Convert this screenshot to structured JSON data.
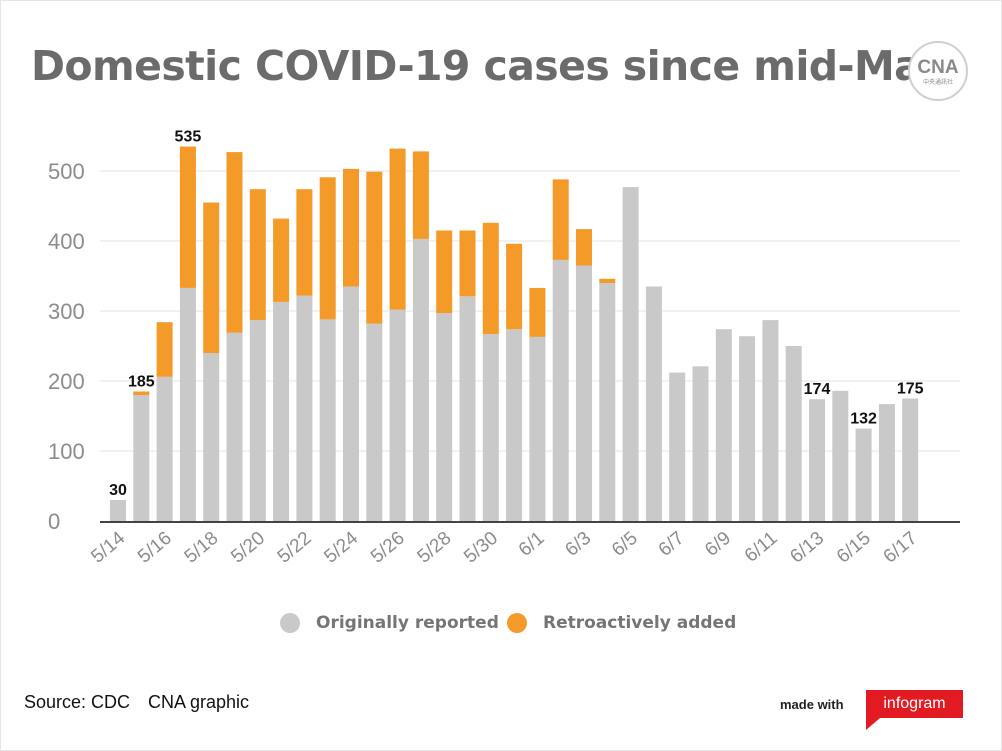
{
  "title": "Domestic COVID-19 cases since mid-May",
  "logo": {
    "mark": "CNA",
    "subtitle": "中央通訊社"
  },
  "legend": [
    {
      "label": "Originally reported",
      "color": "#c9c9c9"
    },
    {
      "label": "Retroactively added",
      "color": "#f39a28"
    }
  ],
  "footer": {
    "source": "Source: CDC",
    "graphic": "CNA graphic",
    "made_with": "made with",
    "brand": "infogram"
  },
  "colors": {
    "original": "#c9c9c9",
    "retro": "#f39a28",
    "axis": "#444444",
    "grid": "#e3e3e3",
    "tick_text": "#8c8c8c"
  },
  "chart_data": {
    "type": "bar",
    "stacked": true,
    "grid": true,
    "legend_position": "bottom",
    "ylim": [
      0,
      600
    ],
    "yticks": [
      0,
      100,
      200,
      300,
      400,
      500
    ],
    "categories": [
      "5/14",
      "5/15",
      "5/16",
      "5/17",
      "5/18",
      "5/19",
      "5/20",
      "5/21",
      "5/22",
      "5/23",
      "5/24",
      "5/25",
      "5/26",
      "5/27",
      "5/28",
      "5/29",
      "5/30",
      "5/31",
      "6/1",
      "6/2",
      "6/3",
      "6/4",
      "6/5",
      "6/6",
      "6/7",
      "6/8",
      "6/9",
      "6/10",
      "6/11",
      "6/12",
      "6/13",
      "6/14",
      "6/15",
      "6/16",
      "6/17"
    ],
    "xtick_labels": [
      "5/14",
      "5/16",
      "5/18",
      "5/20",
      "5/22",
      "5/24",
      "5/26",
      "5/28",
      "5/30",
      "6/1",
      "6/3",
      "6/5",
      "6/7",
      "6/9",
      "6/11",
      "6/13",
      "6/15",
      "6/17"
    ],
    "series": [
      {
        "name": "Originally reported",
        "values": [
          30,
          180,
          206,
          333,
          240,
          269,
          287,
          313,
          322,
          288,
          335,
          282,
          302,
          403,
          297,
          321,
          267,
          274,
          263,
          373,
          365,
          340,
          477,
          335,
          212,
          221,
          274,
          264,
          287,
          250,
          174,
          186,
          132,
          167,
          175
        ]
      },
      {
        "name": "Retroactively added",
        "values": [
          0,
          5,
          78,
          202,
          215,
          258,
          187,
          119,
          152,
          203,
          168,
          217,
          230,
          125,
          118,
          94,
          159,
          122,
          70,
          115,
          52,
          6,
          0,
          0,
          0,
          0,
          0,
          0,
          0,
          0,
          0,
          0,
          0,
          0,
          0
        ]
      }
    ],
    "data_labels": [
      {
        "category": "5/14",
        "text": "30"
      },
      {
        "category": "5/15",
        "text": "185"
      },
      {
        "category": "5/17",
        "text": "535"
      },
      {
        "category": "6/13",
        "text": "174"
      },
      {
        "category": "6/15",
        "text": "132"
      },
      {
        "category": "6/17",
        "text": "175"
      }
    ]
  }
}
